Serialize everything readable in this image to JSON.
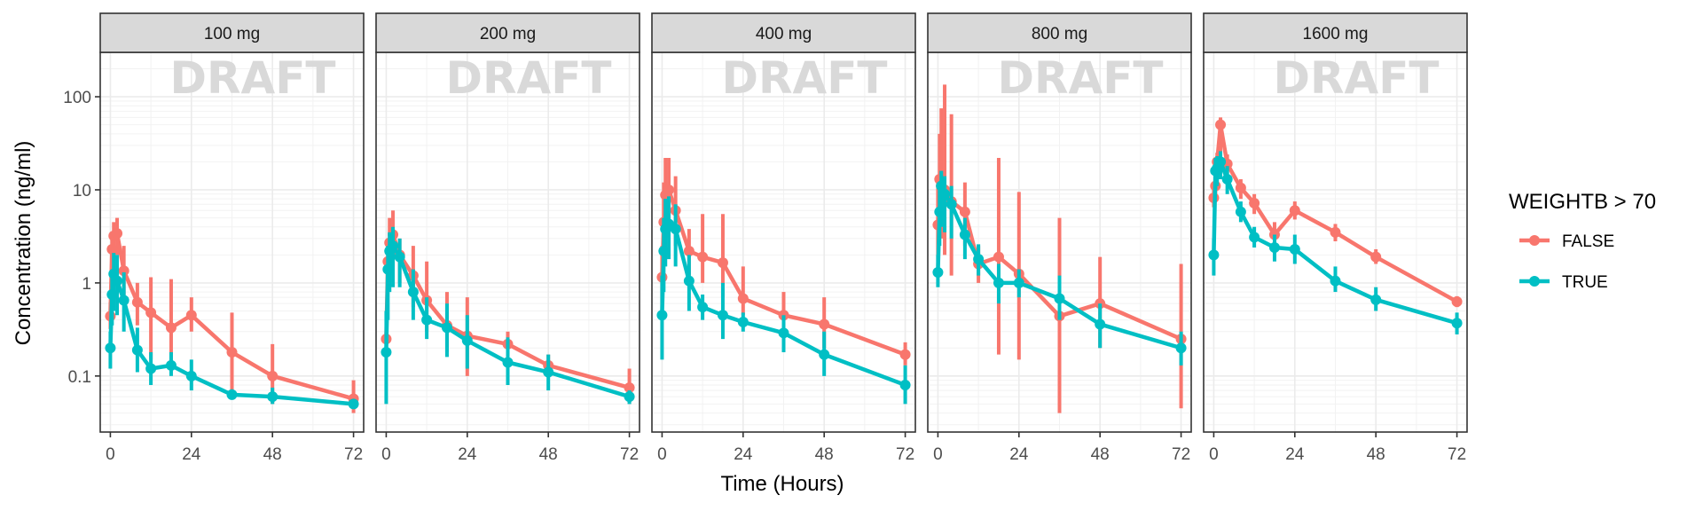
{
  "chart_data": {
    "type": "line",
    "xlabel": "Time (Hours)",
    "ylabel": "Concentration (ng/ml)",
    "x_ticks": [
      0,
      24,
      48,
      72
    ],
    "xlim": [
      -3,
      75
    ],
    "y_scale": "log10",
    "y_ticks": [
      {
        "value": 0.1,
        "label": "0.1"
      },
      {
        "value": 1,
        "label": "1"
      },
      {
        "value": 10,
        "label": "10"
      },
      {
        "value": 100,
        "label": "100"
      }
    ],
    "ylim": [
      0.025,
      300
    ],
    "grid": true,
    "watermark": "DRAFT",
    "legend": {
      "title": "WEIGHTB > 70",
      "position": "right",
      "entries": [
        {
          "name": "FALSE",
          "color": "#F8766D"
        },
        {
          "name": "TRUE",
          "color": "#00BFC4"
        }
      ]
    },
    "panels": [
      {
        "label": "100 mg",
        "series": [
          {
            "name": "FALSE",
            "color": "#F8766D",
            "points": [
              [
                0,
                0.44,
                0.32,
                0.62
              ],
              [
                0.5,
                2.3,
                1.5,
                3.5
              ],
              [
                1,
                3.2,
                1.8,
                4.5
              ],
              [
                2,
                3.4,
                2.0,
                5.0
              ],
              [
                4,
                1.35,
                0.7,
                2.5
              ],
              [
                8,
                0.62,
                0.35,
                1.0
              ],
              [
                12,
                0.48,
                0.15,
                1.15
              ],
              [
                18,
                0.33,
                0.13,
                1.1
              ],
              [
                24,
                0.45,
                0.3,
                0.7
              ],
              [
                36,
                0.18,
                0.06,
                0.48
              ],
              [
                48,
                0.1,
                0.05,
                0.22
              ],
              [
                72,
                0.057,
                0.04,
                0.09
              ]
            ]
          },
          {
            "name": "TRUE",
            "color": "#00BFC4",
            "points": [
              [
                0,
                0.2,
                0.12,
                0.3
              ],
              [
                0.5,
                0.75,
                0.35,
                1.3
              ],
              [
                1,
                1.25,
                0.5,
                2.1
              ],
              [
                2,
                1.05,
                0.45,
                2.0
              ],
              [
                4,
                0.65,
                0.3,
                1.3
              ],
              [
                8,
                0.19,
                0.11,
                0.33
              ],
              [
                12,
                0.12,
                0.08,
                0.18
              ],
              [
                18,
                0.13,
                0.1,
                0.18
              ],
              [
                24,
                0.1,
                0.07,
                0.15
              ],
              [
                36,
                0.063,
                0.056,
                0.072
              ],
              [
                48,
                0.06,
                0.05,
                0.075
              ],
              [
                72,
                0.05,
                0.045,
                0.055
              ]
            ]
          }
        ]
      },
      {
        "label": "200 mg",
        "series": [
          {
            "name": "FALSE",
            "color": "#F8766D",
            "points": [
              [
                0,
                0.25,
                0.22,
                0.3
              ],
              [
                0.5,
                1.7,
                1.0,
                3.0
              ],
              [
                1,
                2.7,
                1.2,
                5.0
              ],
              [
                2,
                3.3,
                1.5,
                6.0
              ],
              [
                4,
                2.0,
                1.0,
                3.0
              ],
              [
                8,
                1.2,
                0.55,
                2.5
              ],
              [
                12,
                0.65,
                0.3,
                1.7
              ],
              [
                18,
                0.35,
                0.18,
                0.8
              ],
              [
                24,
                0.27,
                0.1,
                0.7
              ],
              [
                36,
                0.22,
                0.15,
                0.3
              ],
              [
                48,
                0.13,
                0.1,
                0.17
              ],
              [
                72,
                0.075,
                0.05,
                0.12
              ]
            ]
          },
          {
            "name": "TRUE",
            "color": "#00BFC4",
            "points": [
              [
                0,
                0.18,
                0.05,
                0.5
              ],
              [
                0.5,
                1.4,
                0.4,
                2.5
              ],
              [
                1,
                2.2,
                0.8,
                3.5
              ],
              [
                2,
                2.5,
                0.9,
                4.0
              ],
              [
                4,
                1.9,
                0.9,
                3.0
              ],
              [
                8,
                0.8,
                0.4,
                1.4
              ],
              [
                12,
                0.4,
                0.25,
                0.7
              ],
              [
                18,
                0.33,
                0.16,
                0.6
              ],
              [
                24,
                0.24,
                0.12,
                0.45
              ],
              [
                36,
                0.14,
                0.08,
                0.26
              ],
              [
                48,
                0.11,
                0.07,
                0.17
              ],
              [
                72,
                0.06,
                0.05,
                0.07
              ]
            ]
          }
        ]
      },
      {
        "label": "400 mg",
        "series": [
          {
            "name": "FALSE",
            "color": "#F8766D",
            "points": [
              [
                0,
                1.15,
                0.5,
                2.5
              ],
              [
                0.5,
                4.5,
                1.5,
                12
              ],
              [
                1,
                8.8,
                3.0,
                22
              ],
              [
                2,
                10.0,
                3.5,
                22
              ],
              [
                4,
                6.0,
                2.5,
                14
              ],
              [
                8,
                2.2,
                1.2,
                3.8
              ],
              [
                12,
                1.9,
                1.0,
                5.5
              ],
              [
                18,
                1.65,
                0.7,
                5.5
              ],
              [
                24,
                0.68,
                0.45,
                1.5
              ],
              [
                36,
                0.45,
                0.3,
                0.8
              ],
              [
                48,
                0.36,
                0.2,
                0.7
              ],
              [
                72,
                0.17,
                0.13,
                0.23
              ]
            ]
          },
          {
            "name": "TRUE",
            "color": "#00BFC4",
            "points": [
              [
                0,
                0.45,
                0.15,
                1.2
              ],
              [
                0.5,
                2.2,
                0.8,
                5.0
              ],
              [
                1,
                3.8,
                1.5,
                8.0
              ],
              [
                2,
                4.3,
                1.8,
                8.5
              ],
              [
                4,
                3.8,
                1.5,
                7.0
              ],
              [
                8,
                1.05,
                0.5,
                2.0
              ],
              [
                12,
                0.55,
                0.4,
                0.75
              ],
              [
                18,
                0.45,
                0.25,
                1.0
              ],
              [
                24,
                0.38,
                0.3,
                0.48
              ],
              [
                36,
                0.29,
                0.18,
                0.45
              ],
              [
                48,
                0.17,
                0.1,
                0.3
              ],
              [
                72,
                0.08,
                0.05,
                0.13
              ]
            ]
          }
        ]
      },
      {
        "label": "800 mg",
        "series": [
          {
            "name": "FALSE",
            "color": "#F8766D",
            "points": [
              [
                0,
                4.2,
                1.5,
                12
              ],
              [
                0.5,
                13,
                5,
                40
              ],
              [
                1,
                11,
                3,
                75
              ],
              [
                2,
                10,
                2,
                135
              ],
              [
                4,
                7.5,
                1.2,
                65
              ],
              [
                8,
                5.8,
                2.5,
                12
              ],
              [
                12,
                1.6,
                1.0,
                2.5
              ],
              [
                18,
                1.9,
                0.17,
                22
              ],
              [
                24,
                1.25,
                0.15,
                9.5
              ],
              [
                36,
                0.44,
                0.04,
                5.0
              ],
              [
                48,
                0.6,
                0.2,
                1.9
              ],
              [
                72,
                0.25,
                0.045,
                1.6
              ]
            ]
          },
          {
            "name": "TRUE",
            "color": "#00BFC4",
            "points": [
              [
                0,
                1.3,
                0.9,
                2.0
              ],
              [
                0.5,
                5.8,
                2.5,
                12
              ],
              [
                1,
                11,
                4,
                16
              ],
              [
                2,
                9.0,
                3.5,
                14
              ],
              [
                4,
                7.0,
                3.0,
                11
              ],
              [
                8,
                3.3,
                1.8,
                5.0
              ],
              [
                12,
                1.8,
                1.2,
                2.6
              ],
              [
                18,
                1.0,
                0.6,
                1.6
              ],
              [
                24,
                1.0,
                0.7,
                1.4
              ],
              [
                36,
                0.68,
                0.4,
                1.2
              ],
              [
                48,
                0.36,
                0.2,
                0.6
              ],
              [
                72,
                0.2,
                0.13,
                0.3
              ]
            ]
          }
        ]
      },
      {
        "label": "1600 mg",
        "series": [
          {
            "name": "FALSE",
            "color": "#F8766D",
            "points": [
              [
                0,
                8.2,
                6.5,
                10.5
              ],
              [
                0.5,
                11,
                8,
                14
              ],
              [
                1,
                20,
                15,
                25
              ],
              [
                2,
                50,
                20,
                60
              ],
              [
                4,
                19,
                15,
                24
              ],
              [
                8,
                10.5,
                8,
                13
              ],
              [
                12,
                7.2,
                5.5,
                9
              ],
              [
                18,
                3.3,
                2.5,
                4.5
              ],
              [
                24,
                6.0,
                4.8,
                7.5
              ],
              [
                36,
                3.5,
                2.8,
                4.3
              ],
              [
                48,
                1.9,
                1.6,
                2.3
              ],
              [
                72,
                0.63,
                0.55,
                0.72
              ]
            ]
          },
          {
            "name": "TRUE",
            "color": "#00BFC4",
            "points": [
              [
                0,
                2.0,
                1.2,
                3.0
              ],
              [
                0.5,
                16,
                10,
                22
              ],
              [
                1,
                17,
                11,
                23
              ],
              [
                2,
                20,
                13,
                26
              ],
              [
                4,
                13,
                9,
                18
              ],
              [
                8,
                5.8,
                4.5,
                7.5
              ],
              [
                12,
                3.1,
                2.4,
                4.0
              ],
              [
                18,
                2.4,
                1.7,
                3.3
              ],
              [
                24,
                2.3,
                1.6,
                3.3
              ],
              [
                36,
                1.05,
                0.8,
                1.5
              ],
              [
                48,
                0.66,
                0.5,
                0.9
              ],
              [
                72,
                0.37,
                0.28,
                0.48
              ]
            ]
          }
        ]
      }
    ]
  }
}
